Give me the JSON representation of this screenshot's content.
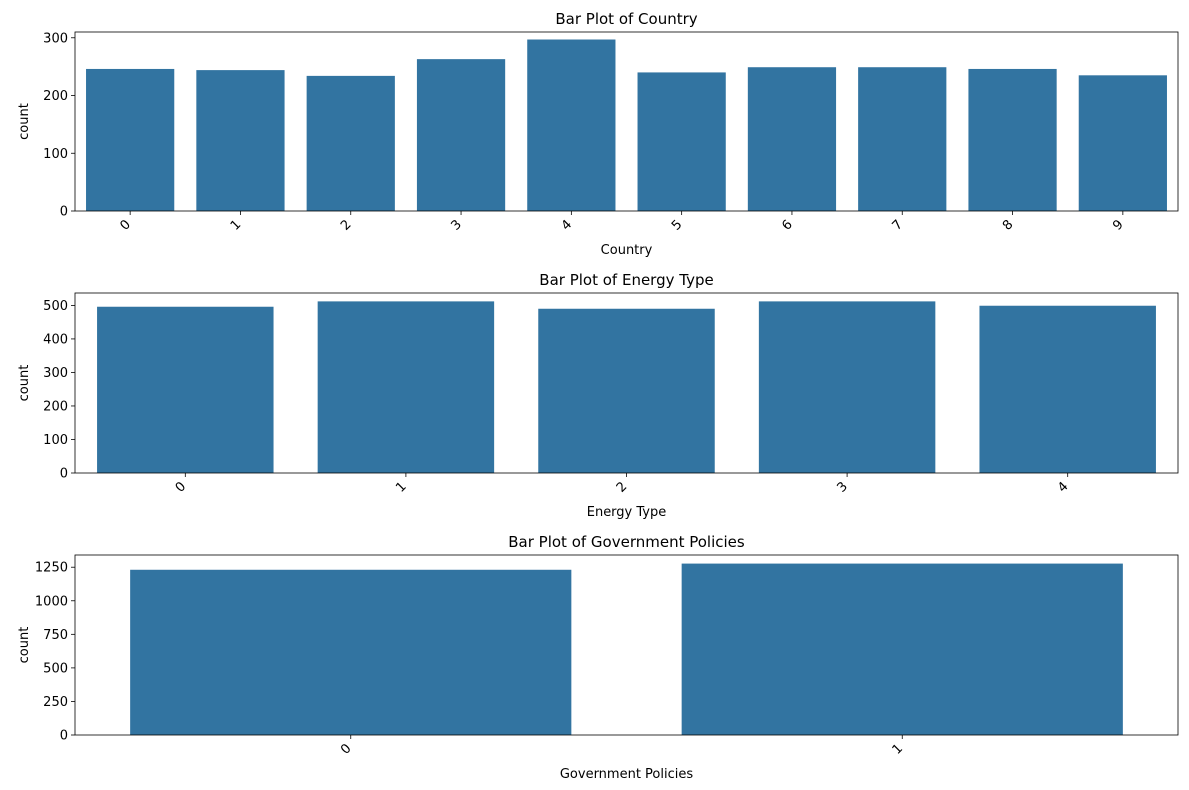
{
  "chart_data": [
    {
      "type": "bar",
      "title": "Bar Plot of Country",
      "xlabel": "Country",
      "ylabel": "count",
      "categories": [
        "0",
        "1",
        "2",
        "3",
        "4",
        "5",
        "6",
        "7",
        "8",
        "9"
      ],
      "values": [
        246,
        244,
        234,
        263,
        297,
        240,
        249,
        249,
        246,
        235
      ],
      "ylim": [
        0,
        310
      ],
      "yticks": [
        0,
        100,
        200,
        300
      ],
      "ytick_labels": [
        "0",
        "100",
        "200",
        "300"
      ],
      "bar_color": "#3274a1",
      "grid": false
    },
    {
      "type": "bar",
      "title": "Bar Plot of Energy Type",
      "xlabel": "Energy Type",
      "ylabel": "count",
      "categories": [
        "0",
        "1",
        "2",
        "3",
        "4"
      ],
      "values": [
        496,
        512,
        490,
        512,
        499
      ],
      "ylim": [
        0,
        537
      ],
      "yticks": [
        0,
        100,
        200,
        300,
        400,
        500
      ],
      "ytick_labels": [
        "0",
        "100",
        "200",
        "300",
        "400",
        "500"
      ],
      "bar_color": "#3274a1",
      "grid": false
    },
    {
      "type": "bar",
      "title": "Bar Plot of Government Policies",
      "xlabel": "Government Policies",
      "ylabel": "count",
      "categories": [
        "0",
        "1"
      ],
      "values": [
        1231,
        1277
      ],
      "ylim": [
        0,
        1341
      ],
      "yticks": [
        0,
        250,
        500,
        750,
        1000,
        1250
      ],
      "ytick_labels": [
        "0",
        "250",
        "500",
        "750",
        "1000",
        "1250"
      ],
      "bar_color": "#3274a1",
      "grid": false
    }
  ]
}
